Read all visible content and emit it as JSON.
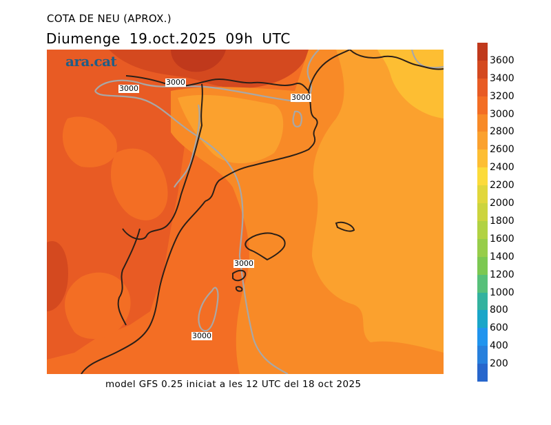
{
  "header": {
    "title": "COTA DE NEU (APROX.)",
    "subtitle": "Diumenge  19.oct.2025 09h UTC"
  },
  "logo": {
    "text": "ara.cat",
    "color": "#1f5d86"
  },
  "footer": {
    "text": "model GFS 0.25 iniciat a les 12 UTC del 18 oct 2025"
  },
  "map": {
    "contour_labels": [
      "3000",
      "3000",
      "3000",
      "3000",
      "3000"
    ],
    "colors": {
      "c3400": "#d4491f",
      "c3200": "#e85b24",
      "c3000": "#f36e24",
      "c2800": "#f88a27",
      "c2600": "#fba12e",
      "c2400": "#fdbe33",
      "coast": "#2a1f18",
      "contour": "#a8a8a8"
    }
  },
  "colorbar": {
    "ticks": [
      "3600",
      "3400",
      "3200",
      "3000",
      "2800",
      "2600",
      "2400",
      "2200",
      "2000",
      "1800",
      "1600",
      "1400",
      "1200",
      "1000",
      "800",
      "600",
      "400",
      "200"
    ],
    "colors": [
      "#c0391c",
      "#d4491f",
      "#e85b24",
      "#f36e24",
      "#f88a27",
      "#fba12e",
      "#fdbe33",
      "#fcdb3a",
      "#e1d73b",
      "#ccd43d",
      "#b1d242",
      "#97cd4a",
      "#7cc852",
      "#57c07a",
      "#33b29f",
      "#19a6c9",
      "#2094ee",
      "#2780dd",
      "#2766cc"
    ]
  }
}
